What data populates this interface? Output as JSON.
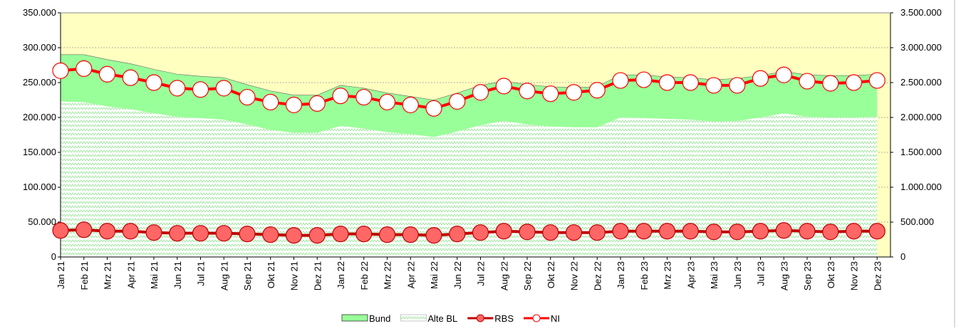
{
  "chart_data": {
    "type": "combo",
    "categories": [
      "Jan 21",
      "Feb 21",
      "Mrz 21",
      "Apr 21",
      "Mai 21",
      "Jun 21",
      "Jul 21",
      "Aug 21",
      "Sep 21",
      "Okt 21",
      "Nov 21",
      "Dez 21",
      "Jan 22",
      "Feb 22",
      "Mrz 22",
      "Apr 22",
      "Mai 22",
      "Jun 22",
      "Jul 22",
      "Aug 22",
      "Sep 22",
      "Okt 22",
      "Nov 22",
      "Dez 22",
      "Jan 23",
      "Feb 23",
      "Mrz 23",
      "Apr 23",
      "Mai 23",
      "Jun 23",
      "Jul 23",
      "Aug 23",
      "Sep 23",
      "Okt 23",
      "Nov 23",
      "Dez 23"
    ],
    "series": [
      {
        "name": "Bund",
        "type": "area",
        "color": "#99ff99",
        "values": [
          67000,
          68000,
          67000,
          65000,
          63000,
          61000,
          60000,
          60000,
          57000,
          56000,
          54000,
          54000,
          58000,
          58000,
          56000,
          54000,
          53000,
          55000,
          57000,
          57000,
          57000,
          57000,
          57000,
          58000,
          61000,
          62000,
          60000,
          60000,
          60000,
          61000,
          60000,
          60000,
          60000,
          60000,
          60000,
          61000
        ]
      },
      {
        "name": "Alte BL",
        "type": "area",
        "color": "#ccffcc",
        "values": [
          223000,
          222000,
          216000,
          212000,
          206000,
          201000,
          199000,
          197000,
          190000,
          182000,
          178000,
          178000,
          188000,
          184000,
          179000,
          176000,
          172000,
          180000,
          189000,
          195000,
          190000,
          187000,
          186000,
          186000,
          200000,
          199000,
          198000,
          197000,
          194000,
          195000,
          200000,
          206000,
          201000,
          200000,
          200000,
          201000
        ]
      },
      {
        "name": "RBS",
        "type": "line",
        "color": "#c00000",
        "marker_fill": "#ff6666",
        "values": [
          38000,
          39000,
          37000,
          37000,
          35000,
          34000,
          34000,
          34000,
          33000,
          32000,
          31000,
          31000,
          33000,
          33000,
          32000,
          32000,
          31000,
          33000,
          35000,
          37000,
          36000,
          35000,
          35000,
          35000,
          37000,
          37000,
          37000,
          37000,
          36000,
          36000,
          37000,
          38000,
          37000,
          36000,
          37000,
          37000
        ]
      },
      {
        "name": "NI",
        "type": "line",
        "axis": "y2",
        "color": "#ff0000",
        "marker_fill": "#ffffff",
        "values": [
          2670000,
          2700000,
          2620000,
          2570000,
          2500000,
          2420000,
          2400000,
          2420000,
          2290000,
          2220000,
          2180000,
          2200000,
          2310000,
          2290000,
          2220000,
          2180000,
          2130000,
          2230000,
          2360000,
          2450000,
          2380000,
          2340000,
          2360000,
          2390000,
          2530000,
          2540000,
          2500000,
          2500000,
          2460000,
          2460000,
          2560000,
          2610000,
          2520000,
          2490000,
          2500000,
          2530000
        ]
      }
    ],
    "ylim": [
      0,
      350000
    ],
    "yticks": [
      0,
      {
        "value": 50000,
        "label": "50.000"
      },
      {
        "value": 100000,
        "label": "100.000"
      },
      {
        "value": 150000,
        "label": "150.000"
      },
      {
        "value": 200000,
        "label": "200.000"
      },
      {
        "value": 250000,
        "label": "250.000"
      },
      {
        "value": 300000,
        "label": "300.000"
      },
      {
        "value": 350000,
        "label": "350.000"
      }
    ],
    "y2lim": [
      0,
      3500000
    ],
    "y2ticks": [
      0,
      {
        "value": 500000,
        "label": "500.000"
      },
      {
        "value": 1000000,
        "label": "1.000.000"
      },
      {
        "value": 1500000,
        "label": "1.500.000"
      },
      {
        "value": 2000000,
        "label": "2.000.000"
      },
      {
        "value": 2500000,
        "label": "2.500.000"
      },
      {
        "value": 3000000,
        "label": "3.000.000"
      },
      {
        "value": 3500000,
        "label": "3.500.000"
      }
    ],
    "grid": true,
    "legend": "bottom"
  }
}
